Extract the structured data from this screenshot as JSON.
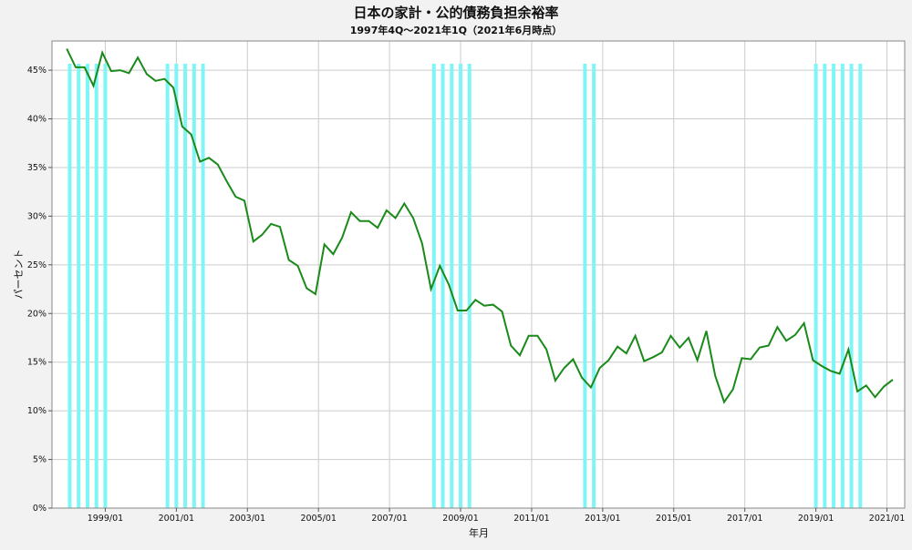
{
  "chart_data": {
    "type": "line",
    "title": "日本の家計・公的債務負担余裕率",
    "subtitle": "1997年4Q～2021年1Q（2021年6月時点）",
    "xlabel": "年月",
    "ylabel": "パーセント",
    "ylim": [
      0,
      48
    ],
    "yticks": [
      0,
      5,
      10,
      15,
      20,
      25,
      30,
      35,
      40,
      45
    ],
    "ytick_labels": [
      "0%",
      "5%",
      "10%",
      "15%",
      "20%",
      "25%",
      "30%",
      "35%",
      "40%",
      "45%"
    ],
    "xlim": [
      "1997-07",
      "2021-07"
    ],
    "xticks": [
      "1999-01",
      "2001-01",
      "2003-01",
      "2005-01",
      "2007-01",
      "2009-01",
      "2011-01",
      "2013-01",
      "2015-01",
      "2017-01",
      "2019-01",
      "2021-01"
    ],
    "xtick_labels": [
      "1999/01",
      "2001/01",
      "2003/01",
      "2005/01",
      "2007/01",
      "2009/01",
      "2011/01",
      "2013/01",
      "2015/01",
      "2017/01",
      "2019/01",
      "2021/01"
    ],
    "grid": true,
    "colors": {
      "line": "#1a8a1a",
      "shade": "#7ff5f5",
      "grid": "#cccccc",
      "background": "#ffffff"
    },
    "series": [
      {
        "x": [
          "1997-12",
          "1998-03",
          "1998-06",
          "1998-09",
          "1998-12",
          "1999-03",
          "1999-06",
          "1999-09",
          "1999-12",
          "2000-03",
          "2000-06",
          "2000-09",
          "2000-12",
          "2001-03",
          "2001-06",
          "2001-09",
          "2001-12",
          "2002-03",
          "2002-06",
          "2002-09",
          "2002-12",
          "2003-03",
          "2003-06",
          "2003-09",
          "2003-12",
          "2004-03",
          "2004-06",
          "2004-09",
          "2004-12",
          "2005-03",
          "2005-06",
          "2005-09",
          "2005-12",
          "2006-03",
          "2006-06",
          "2006-09",
          "2006-12",
          "2007-03",
          "2007-06",
          "2007-09",
          "2007-12",
          "2008-03",
          "2008-06",
          "2008-09",
          "2008-12",
          "2009-03",
          "2009-06",
          "2009-09",
          "2009-12",
          "2010-03",
          "2010-06",
          "2010-09",
          "2010-12",
          "2011-03",
          "2011-06",
          "2011-09",
          "2011-12",
          "2012-03",
          "2012-06",
          "2012-09",
          "2012-12",
          "2013-03",
          "2013-06",
          "2013-09",
          "2013-12",
          "2014-03",
          "2014-06",
          "2014-09",
          "2014-12",
          "2015-03",
          "2015-06",
          "2015-09",
          "2015-12",
          "2016-03",
          "2016-06",
          "2016-09",
          "2016-12",
          "2017-03",
          "2017-06",
          "2017-09",
          "2017-12",
          "2018-03",
          "2018-06",
          "2018-09",
          "2018-12",
          "2019-03",
          "2019-06",
          "2019-09",
          "2019-12",
          "2020-03",
          "2020-06",
          "2020-09",
          "2020-12",
          "2021-03"
        ],
        "values": [
          47.2,
          45.3,
          45.3,
          43.4,
          46.8,
          44.9,
          45.0,
          44.7,
          46.3,
          44.6,
          43.9,
          44.1,
          43.2,
          39.2,
          38.4,
          35.6,
          36.0,
          35.3,
          33.6,
          32.0,
          31.6,
          27.4,
          28.1,
          29.2,
          28.9,
          25.5,
          24.9,
          22.6,
          22.0,
          27.1,
          26.1,
          27.8,
          30.4,
          29.5,
          29.5,
          28.8,
          30.6,
          29.8,
          31.3,
          29.8,
          27.2,
          22.5,
          24.9,
          23.0,
          20.3,
          20.3,
          21.4,
          20.8,
          20.9,
          20.2,
          16.7,
          15.7,
          17.7,
          17.7,
          16.3,
          13.1,
          14.4,
          15.3,
          13.4,
          12.4,
          14.4,
          15.2,
          16.6,
          15.9,
          17.7,
          15.1,
          15.5,
          16.0,
          17.7,
          16.5,
          17.5,
          15.2,
          18.2,
          13.6,
          10.9,
          12.2,
          15.4,
          15.3,
          16.5,
          16.7,
          18.6,
          17.2,
          17.8,
          19.0,
          15.2,
          14.6,
          14.1,
          13.8,
          16.3,
          12.0,
          12.6,
          11.4,
          12.5,
          13.2
        ]
      }
    ],
    "shaded_bars": [
      "1998-01",
      "1998-04",
      "1998-07",
      "1998-10",
      "1999-01",
      "2000-10",
      "2001-01",
      "2001-04",
      "2001-07",
      "2001-10",
      "2008-04",
      "2008-07",
      "2008-10",
      "2009-01",
      "2009-04",
      "2012-07",
      "2012-10",
      "2019-01",
      "2019-04",
      "2019-07",
      "2019-10",
      "2020-01",
      "2020-04"
    ]
  }
}
